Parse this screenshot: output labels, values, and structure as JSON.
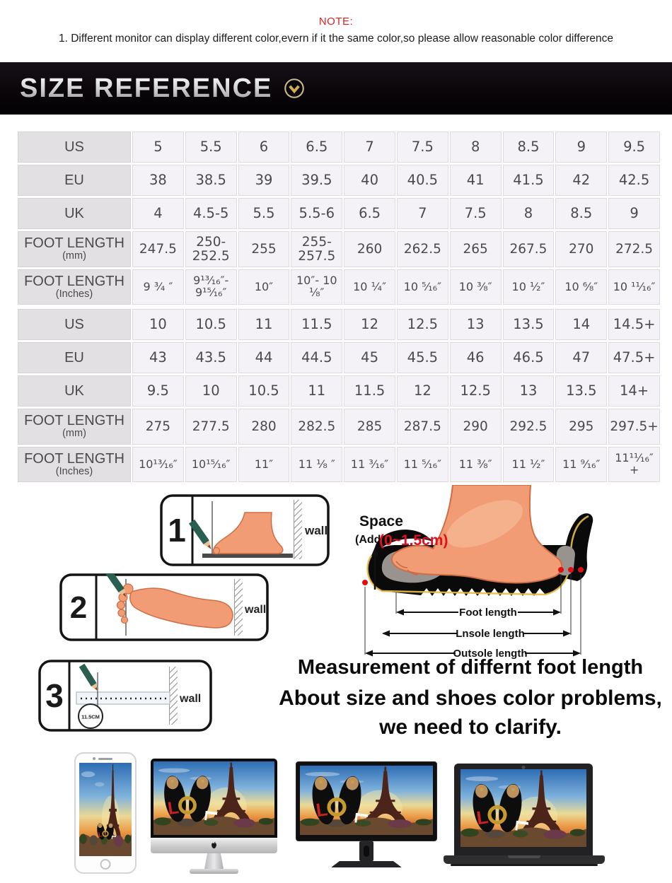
{
  "note": {
    "label": "NOTE:",
    "text": "1. Different monitor can display different color,evern if it the same color,so please allow reasonable color difference"
  },
  "banner": {
    "title": "SIZE REFERENCE",
    "icon": "chevron-down-icon"
  },
  "size_tables": [
    {
      "rows": [
        {
          "label": "US",
          "sub": "",
          "values": [
            "5",
            "5.5",
            "6",
            "6.5",
            "7",
            "7.5",
            "8",
            "8.5",
            "9",
            "9.5"
          ]
        },
        {
          "label": "EU",
          "sub": "",
          "values": [
            "38",
            "38.5",
            "39",
            "39.5",
            "40",
            "40.5",
            "41",
            "41.5",
            "42",
            "42.5"
          ]
        },
        {
          "label": "UK",
          "sub": "",
          "values": [
            "4",
            "4.5-5",
            "5.5",
            "5.5-6",
            "6.5",
            "7",
            "7.5",
            "8",
            "8.5",
            "9"
          ]
        },
        {
          "label": "FOOT LENGTH",
          "sub": "(mm)",
          "values": [
            "247.5",
            "250- 252.5",
            "255",
            "255- 257.5",
            "260",
            "262.5",
            "265",
            "267.5",
            "270",
            "272.5"
          ]
        },
        {
          "label": "FOOT LENGTH",
          "sub": "(Inches)",
          "values": [
            "9 ³⁄₄ ″",
            "9¹³⁄₁₆″- 9¹⁵⁄₁₆″",
            "10″",
            "10″- 10 ¹⁄₈″",
            "10 ¹⁄₄″",
            "10 ⁵⁄₁₆″",
            "10 ³⁄₈″",
            "10 ¹⁄₂″",
            "10 ⁶⁄₈″",
            "10 ¹¹⁄₁₆″"
          ]
        }
      ]
    },
    {
      "rows": [
        {
          "label": "US",
          "sub": "",
          "values": [
            "10",
            "10.5",
            "11",
            "11.5",
            "12",
            "12.5",
            "13",
            "13.5",
            "14",
            "14.5+"
          ]
        },
        {
          "label": "EU",
          "sub": "",
          "values": [
            "43",
            "43.5",
            "44",
            "44.5",
            "45",
            "45.5",
            "46",
            "46.5",
            "47",
            "47.5+"
          ]
        },
        {
          "label": "UK",
          "sub": "",
          "values": [
            "9.5",
            "10",
            "10.5",
            "11",
            "11.5",
            "12",
            "12.5",
            "13",
            "13.5",
            "14+"
          ]
        },
        {
          "label": "FOOT LENGTH",
          "sub": "(mm)",
          "values": [
            "275",
            "277.5",
            "280",
            "282.5",
            "285",
            "287.5",
            "290",
            "292.5",
            "295",
            "297.5+"
          ]
        },
        {
          "label": "FOOT LENGTH",
          "sub": "(Inches)",
          "values": [
            "10¹³⁄₁₆″",
            "10¹⁵⁄₁₆″",
            "11″",
            "11 ¹⁄₈ ″",
            "11 ³⁄₁₆″",
            "11 ⁵⁄₁₆″",
            "11 ³⁄₈″",
            "11 ¹⁄₂″",
            "11 ⁹⁄₁₆″",
            "11¹¹⁄₁₆″+"
          ]
        }
      ]
    }
  ],
  "measure_steps": [
    {
      "number": "1",
      "wall_label": "wall"
    },
    {
      "number": "2",
      "wall_label": "wall"
    },
    {
      "number": "3",
      "wall_label": "wall",
      "ruler_label": "11.5CM"
    }
  ],
  "foot_diagram": {
    "space_label": "Space",
    "add_label": "(Add",
    "range_label": "(0~1.5cm)",
    "dims": [
      "Foot length",
      "Lnsole length",
      "Outsole length"
    ]
  },
  "captions": [
    "Measurement of differnt foot length",
    "About size and shoes color problems,",
    "we need to clarify."
  ],
  "devices": [
    "smartphone",
    "imac-desktop",
    "lcd-monitor",
    "laptop"
  ],
  "colors": {
    "accent_red": "#e02020",
    "banner_bg": "#0a060a",
    "gold": "#d4ac4e",
    "table_label_bg": "#e3e0e4",
    "table_cell_bg": "#f4f2f6",
    "foot_skin": "#f19c74",
    "pencil_green": "#2a5e50"
  }
}
